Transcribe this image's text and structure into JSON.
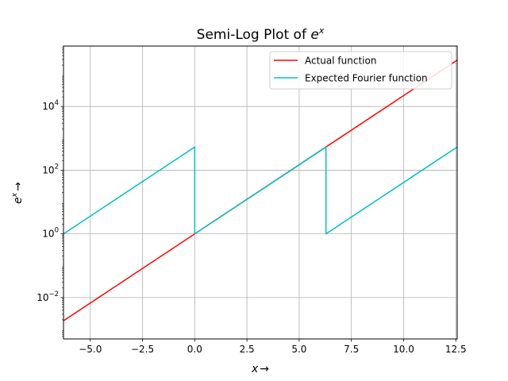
{
  "chart_data": {
    "type": "line",
    "yscale": "log",
    "title_main": "Semi-Log Plot of ",
    "title_base": "e",
    "title_sup": "x",
    "xlabel_main": "x",
    "xlabel_arrow": "→",
    "ylabel_main": "e",
    "ylabel_sup": "x",
    "ylabel_arrow": "→",
    "xlim": [
      -6.283,
      12.566
    ],
    "ylim_log10": [
      -3.3,
      5.9
    ],
    "x_ticks": [
      {
        "value": -5.0,
        "label": "−5.0"
      },
      {
        "value": -2.5,
        "label": "−2.5"
      },
      {
        "value": 0.0,
        "label": "0.0"
      },
      {
        "value": 2.5,
        "label": "2.5"
      },
      {
        "value": 5.0,
        "label": "5.0"
      },
      {
        "value": 7.5,
        "label": "7.5"
      },
      {
        "value": 10.0,
        "label": "10.0"
      },
      {
        "value": 12.5,
        "label": "12.5"
      }
    ],
    "y_ticks": [
      {
        "exp": -2,
        "base": "10",
        "sup": "−2"
      },
      {
        "exp": 0,
        "base": "10",
        "sup": "0"
      },
      {
        "exp": 2,
        "base": "10",
        "sup": "2"
      },
      {
        "exp": 4,
        "base": "10",
        "sup": "4"
      }
    ],
    "grid": true,
    "legend_location": "top-right",
    "series": [
      {
        "name": "Actual function",
        "color": "#ff0000",
        "x": [
          -6.283,
          12.566
        ],
        "y": [
          0.001867,
          286751.3
        ]
      },
      {
        "name": "Expected Fourier function",
        "color": "#00bfbf",
        "x": [
          -6.283,
          0.0,
          0.0,
          6.283,
          6.283,
          12.566
        ],
        "y": [
          1.0,
          535.49,
          1.0,
          535.49,
          1.0,
          535.49
        ]
      }
    ]
  }
}
